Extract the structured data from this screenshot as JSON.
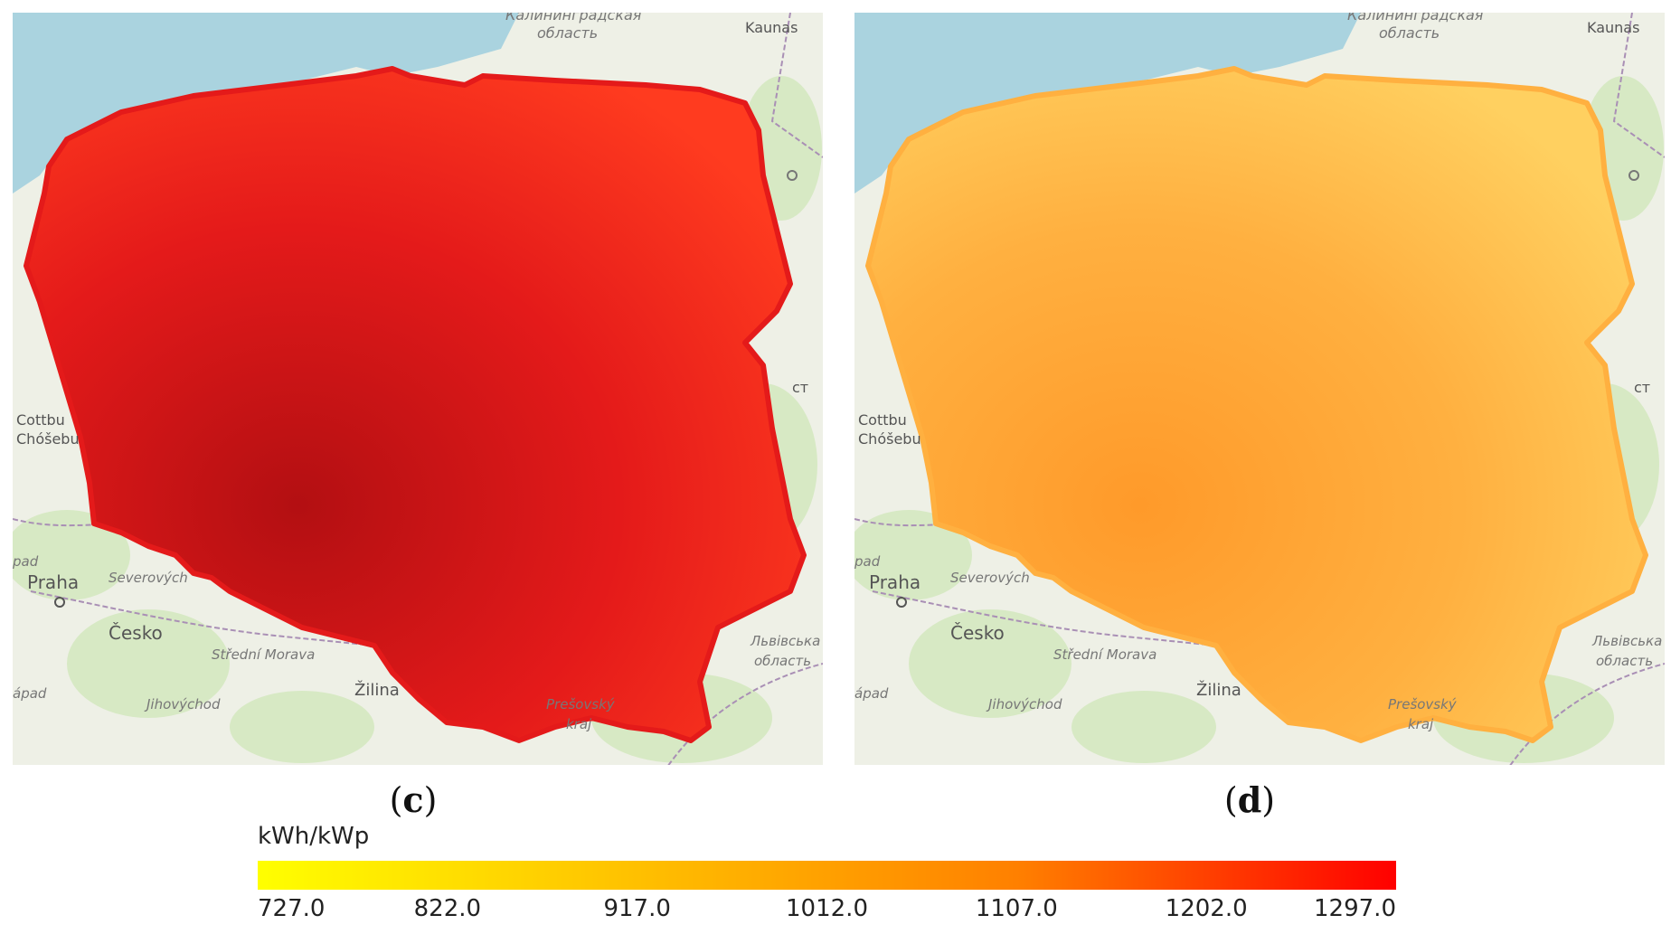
{
  "panels": [
    {
      "caption_letter": "c",
      "fill": "#e41a1a",
      "fill_dark": "#b30f12",
      "fill_light": "#ff3b1f",
      "labels": {
        "kaliningrad_1": "Калининградская",
        "kaliningrad_2": "область",
        "kaunas": "Kaunas",
        "brest": "ст",
        "cottbus_1": "Cottbu",
        "cottbus_2": "Chóšebu",
        "praha": "Praha",
        "severovychod": "Severových",
        "cesko": "Česko",
        "stredni_morava": "Střední Morava",
        "jihovychod": "Jihovýchod",
        "zapad_1": "pad",
        "zapad_2": "ápad",
        "zilina": "Žilina",
        "presovsky_1": "Prešovský",
        "presovsky_2": "kraj",
        "lviv_1": "Львівська",
        "lviv_2": "область"
      }
    },
    {
      "caption_letter": "d",
      "fill": "#ffb040",
      "fill_dark": "#ff9a2a",
      "fill_light": "#ffd060",
      "labels": {
        "kaliningrad_1": "Калининградская",
        "kaliningrad_2": "область",
        "kaunas": "Kaunas",
        "brest": "ст",
        "cottbus_1": "Cottbu",
        "cottbus_2": "Chóšebu",
        "praha": "Praha",
        "severovychod": "Severových",
        "cesko": "Česko",
        "stredni_morava": "Střední Morava",
        "jihovychod": "Jihovýchod",
        "zapad_1": "pad",
        "zapad_2": "ápad",
        "zilina": "Žilina",
        "presovsky_1": "Prešovský",
        "presovsky_2": "kraj",
        "lviv_1": "Львівська",
        "lviv_2": "область"
      }
    }
  ],
  "legend": {
    "unit": "kWh/kWp",
    "ticks": [
      "727.0",
      "822.0",
      "917.0",
      "1012.0",
      "1107.0",
      "1202.0",
      "1297.0"
    ],
    "min": 727.0,
    "max": 1297.0,
    "colors": [
      "#ffff00",
      "#ffc000",
      "#ff8000",
      "#ff0000"
    ]
  },
  "colors": {
    "sea": "#aad3df",
    "land": "#eef0e6",
    "forest": "#d7e9c4",
    "border": "#a98fb5"
  }
}
